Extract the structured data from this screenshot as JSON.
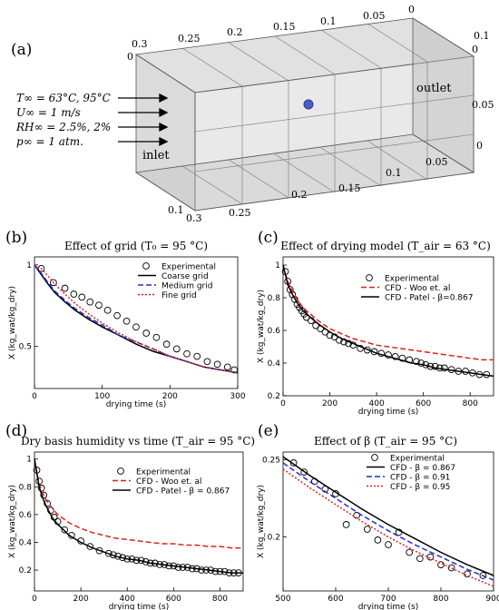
{
  "panel_a": {
    "label": "(a)",
    "conditions": [
      "T∞ = 63°C, 95°C",
      "U∞ = 1 m/s",
      "RH∞ = 2.5%, 2%",
      "p∞ = 1 atm."
    ],
    "inlet": "inlet",
    "outlet": "outlet",
    "top_ticks": [
      "0.3",
      "0.25",
      "0.2",
      "0.15",
      "0.1",
      "0.05",
      "0"
    ],
    "right_top_ticks": [
      "0",
      "0.05",
      "0.1"
    ],
    "bottom_ticks": [
      "0.3",
      "0.25",
      "0.2",
      "0.15",
      "0.1",
      "0.05",
      "0"
    ],
    "left_ticks": [
      "0",
      "0.1"
    ],
    "colors": {
      "box": "#c9c9c9",
      "sphere": "#4b5cc4"
    }
  },
  "chart_data": [
    {
      "panel": "(b)",
      "type": "line",
      "title": "Effect of grid (T₀ = 95 °C)",
      "xlabel": "drying time (s)",
      "ylabel": "X (kg_wat/kg_dry)",
      "xlim": [
        0,
        300
      ],
      "ylim": [
        0.35,
        1.07
      ],
      "yscale": "log",
      "xticks": [
        0,
        100,
        200,
        300
      ],
      "yticks": [
        0.5,
        1
      ],
      "legend_position": "top-right",
      "series": [
        {
          "name": "Experimental",
          "style": "markers",
          "color": "#000000",
          "x": [
            10,
            28,
            45,
            58,
            70,
            82,
            95,
            108,
            122,
            136,
            150,
            165,
            180,
            195,
            210,
            225,
            240,
            255,
            270,
            285,
            295
          ],
          "y": [
            0.97,
            0.86,
            0.82,
            0.78,
            0.76,
            0.73,
            0.71,
            0.68,
            0.65,
            0.62,
            0.59,
            0.56,
            0.54,
            0.51,
            0.49,
            0.47,
            0.46,
            0.44,
            0.43,
            0.42,
            0.41
          ]
        },
        {
          "name": "Coarse grid",
          "style": "solid",
          "color": "#000000",
          "x": [
            0,
            10,
            20,
            30,
            45,
            60,
            80,
            100,
            125,
            150,
            175,
            200,
            225,
            250,
            275,
            300
          ],
          "y": [
            1.0,
            0.92,
            0.85,
            0.79,
            0.73,
            0.68,
            0.63,
            0.59,
            0.55,
            0.51,
            0.48,
            0.46,
            0.44,
            0.42,
            0.41,
            0.4
          ]
        },
        {
          "name": "Medium grid",
          "style": "dashed",
          "color": "#1f2fd0",
          "x": [
            0,
            10,
            20,
            30,
            45,
            60,
            80,
            100,
            125,
            150,
            175,
            200,
            225,
            250,
            275,
            300
          ],
          "y": [
            1.0,
            0.93,
            0.86,
            0.8,
            0.74,
            0.69,
            0.64,
            0.6,
            0.55,
            0.52,
            0.49,
            0.46,
            0.44,
            0.42,
            0.41,
            0.4
          ]
        },
        {
          "name": "Fine grid",
          "style": "dotted",
          "color": "#e0201c",
          "x": [
            0,
            10,
            20,
            30,
            45,
            60,
            80,
            100,
            125,
            150,
            175,
            200,
            225,
            250,
            275,
            300
          ],
          "y": [
            1.0,
            0.97,
            0.91,
            0.85,
            0.78,
            0.72,
            0.66,
            0.61,
            0.56,
            0.52,
            0.49,
            0.46,
            0.44,
            0.42,
            0.41,
            0.4
          ]
        }
      ]
    },
    {
      "panel": "(c)",
      "type": "line",
      "title": "Effect of drying model (T_air = 63 °C)",
      "xlabel": "drying time (s)",
      "ylabel": "X (kg_wat/kg_dry)",
      "xlim": [
        0,
        900
      ],
      "ylim": [
        0.2,
        1.05
      ],
      "xticks": [
        0,
        200,
        400,
        600,
        800
      ],
      "yticks": [
        0.2,
        0.4,
        0.6,
        0.8,
        1
      ],
      "legend_position": "top-right",
      "series": [
        {
          "name": "Experimental",
          "style": "markers",
          "color": "#000000",
          "x": [
            10,
            20,
            30,
            40,
            50,
            60,
            70,
            80,
            90,
            100,
            120,
            140,
            160,
            180,
            200,
            220,
            240,
            260,
            280,
            300,
            330,
            360,
            390,
            420,
            450,
            480,
            510,
            540,
            570,
            590,
            610,
            630,
            650,
            670,
            690,
            720,
            750,
            780,
            810,
            840,
            870
          ],
          "y": [
            0.96,
            0.9,
            0.85,
            0.82,
            0.79,
            0.76,
            0.74,
            0.72,
            0.7,
            0.68,
            0.66,
            0.63,
            0.61,
            0.59,
            0.57,
            0.56,
            0.54,
            0.53,
            0.52,
            0.51,
            0.49,
            0.48,
            0.47,
            0.46,
            0.45,
            0.44,
            0.43,
            0.42,
            0.41,
            0.4,
            0.39,
            0.38,
            0.38,
            0.37,
            0.37,
            0.36,
            0.35,
            0.35,
            0.34,
            0.33,
            0.33
          ]
        },
        {
          "name": "CFD - Woo et. al",
          "style": "dashed",
          "color": "#e0201c",
          "x": [
            0,
            20,
            40,
            60,
            80,
            100,
            150,
            200,
            250,
            300,
            350,
            400,
            450,
            500,
            550,
            600,
            650,
            700,
            750,
            800,
            850,
            900
          ],
          "y": [
            1.0,
            0.9,
            0.84,
            0.79,
            0.75,
            0.72,
            0.66,
            0.61,
            0.58,
            0.55,
            0.53,
            0.51,
            0.5,
            0.49,
            0.48,
            0.47,
            0.46,
            0.45,
            0.44,
            0.43,
            0.42,
            0.42
          ]
        },
        {
          "name": "CFD - Patel - β=0.867",
          "style": "solid",
          "color": "#000000",
          "x": [
            0,
            20,
            40,
            60,
            80,
            100,
            150,
            200,
            250,
            300,
            350,
            400,
            450,
            500,
            550,
            600,
            650,
            700,
            750,
            800,
            850,
            900
          ],
          "y": [
            1.0,
            0.88,
            0.82,
            0.77,
            0.73,
            0.7,
            0.64,
            0.59,
            0.55,
            0.52,
            0.49,
            0.46,
            0.44,
            0.42,
            0.4,
            0.39,
            0.37,
            0.36,
            0.35,
            0.34,
            0.33,
            0.32
          ]
        }
      ]
    },
    {
      "panel": "(d)",
      "type": "line",
      "title": "Dry basis humidity vs time (T_air = 95 °C)",
      "xlabel": "drying time (s)",
      "ylabel": "X (kg_wat/kg_dry)",
      "xlim": [
        0,
        900
      ],
      "ylim": [
        0.05,
        1.05
      ],
      "xticks": [
        0,
        200,
        400,
        600,
        800
      ],
      "yticks": [
        0.2,
        0.4,
        0.6,
        0.8,
        1
      ],
      "legend_position": "top-right",
      "series": [
        {
          "name": "Experimental",
          "style": "markers",
          "color": "#000000",
          "x": [
            10,
            20,
            30,
            40,
            55,
            70,
            85,
            100,
            130,
            160,
            200,
            240,
            280,
            320,
            340,
            360,
            380,
            400,
            420,
            440,
            460,
            480,
            500,
            520,
            540,
            560,
            580,
            600,
            620,
            640,
            660,
            680,
            700,
            720,
            740,
            760,
            780,
            800,
            820,
            840,
            860,
            880
          ],
          "y": [
            0.92,
            0.84,
            0.79,
            0.74,
            0.68,
            0.63,
            0.58,
            0.55,
            0.49,
            0.45,
            0.41,
            0.37,
            0.34,
            0.32,
            0.31,
            0.3,
            0.29,
            0.28,
            0.28,
            0.27,
            0.27,
            0.26,
            0.25,
            0.25,
            0.24,
            0.24,
            0.23,
            0.23,
            0.22,
            0.22,
            0.22,
            0.21,
            0.21,
            0.2,
            0.2,
            0.2,
            0.19,
            0.19,
            0.19,
            0.18,
            0.18,
            0.18
          ]
        },
        {
          "name": "CFD - Woo et. al",
          "style": "dashed",
          "color": "#e0201c",
          "x": [
            0,
            20,
            40,
            60,
            80,
            100,
            150,
            200,
            250,
            300,
            350,
            400,
            450,
            500,
            550,
            600,
            650,
            700,
            750,
            800,
            850,
            900
          ],
          "y": [
            1.0,
            0.82,
            0.74,
            0.68,
            0.64,
            0.6,
            0.54,
            0.5,
            0.47,
            0.45,
            0.43,
            0.42,
            0.41,
            0.4,
            0.39,
            0.39,
            0.38,
            0.38,
            0.37,
            0.37,
            0.36,
            0.36
          ]
        },
        {
          "name": "CFD - Patel - β = 0.867",
          "style": "solid",
          "color": "#000000",
          "x": [
            0,
            20,
            40,
            60,
            80,
            100,
            150,
            200,
            250,
            300,
            350,
            400,
            450,
            500,
            550,
            600,
            650,
            700,
            750,
            800,
            850,
            900
          ],
          "y": [
            1.0,
            0.8,
            0.7,
            0.63,
            0.57,
            0.53,
            0.45,
            0.4,
            0.36,
            0.33,
            0.3,
            0.28,
            0.27,
            0.25,
            0.24,
            0.23,
            0.22,
            0.21,
            0.2,
            0.19,
            0.18,
            0.18
          ]
        }
      ]
    },
    {
      "panel": "(e)",
      "type": "line",
      "title": "Effect of β (T_air = 95 °C)",
      "xlabel": "drying time (s)",
      "ylabel": "X (kg_wat/kg_dry)",
      "xlim": [
        500,
        900
      ],
      "ylim": [
        0.165,
        0.255
      ],
      "xticks": [
        500,
        600,
        700,
        800,
        900
      ],
      "yticks": [
        0.2,
        0.25
      ],
      "legend_position": "top-right",
      "series": [
        {
          "name": "Experimental",
          "style": "markers",
          "color": "#000000",
          "x": [
            520,
            540,
            560,
            580,
            600,
            620,
            640,
            660,
            680,
            700,
            720,
            740,
            760,
            780,
            800,
            820,
            850,
            880
          ],
          "y": [
            0.248,
            0.242,
            0.236,
            0.231,
            0.228,
            0.208,
            0.214,
            0.205,
            0.198,
            0.195,
            0.203,
            0.19,
            0.186,
            0.187,
            0.182,
            0.18,
            0.176,
            0.175
          ]
        },
        {
          "name": "CFD - β = 0.867",
          "style": "solid",
          "color": "#000000",
          "x": [
            500,
            550,
            600,
            650,
            700,
            750,
            800,
            850,
            900
          ],
          "y": [
            0.252,
            0.24,
            0.229,
            0.218,
            0.208,
            0.199,
            0.19,
            0.182,
            0.175
          ]
        },
        {
          "name": "CFD - β = 0.91",
          "style": "dashed",
          "color": "#1f2fd0",
          "x": [
            500,
            550,
            600,
            650,
            700,
            750,
            800,
            850,
            900
          ],
          "y": [
            0.248,
            0.236,
            0.225,
            0.214,
            0.204,
            0.195,
            0.187,
            0.179,
            0.172
          ]
        },
        {
          "name": "CFD - β = 0.95",
          "style": "dotted",
          "color": "#e0201c",
          "x": [
            500,
            550,
            600,
            650,
            700,
            750,
            800,
            850,
            900
          ],
          "y": [
            0.244,
            0.232,
            0.221,
            0.21,
            0.2,
            0.191,
            0.183,
            0.175,
            0.168
          ]
        }
      ]
    }
  ]
}
